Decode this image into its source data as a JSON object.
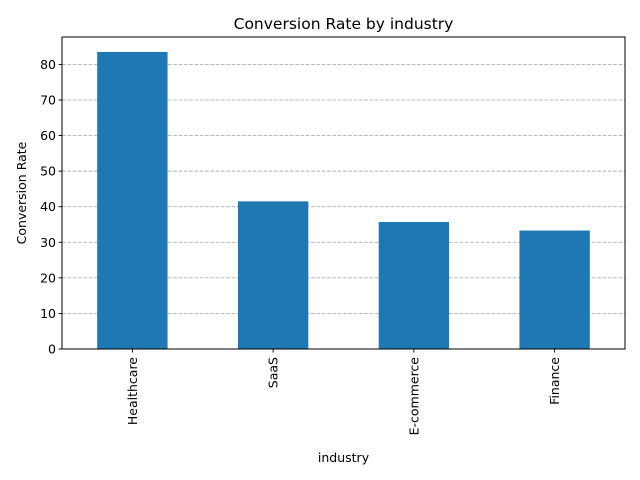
{
  "chart_data": {
    "type": "bar",
    "title": "Conversion Rate by industry",
    "xlabel": "industry",
    "ylabel": "Conversion Rate",
    "categories": [
      "Healthcare",
      "SaaS",
      "E-commerce",
      "Finance"
    ],
    "values": [
      83.5,
      41.5,
      35.7,
      33.3
    ],
    "ylim": [
      0,
      87.7
    ],
    "yticks": [
      0,
      10,
      20,
      30,
      40,
      50,
      60,
      70,
      80
    ],
    "grid": true,
    "grid_axis": "y",
    "bar_color": "#1f77b4"
  }
}
